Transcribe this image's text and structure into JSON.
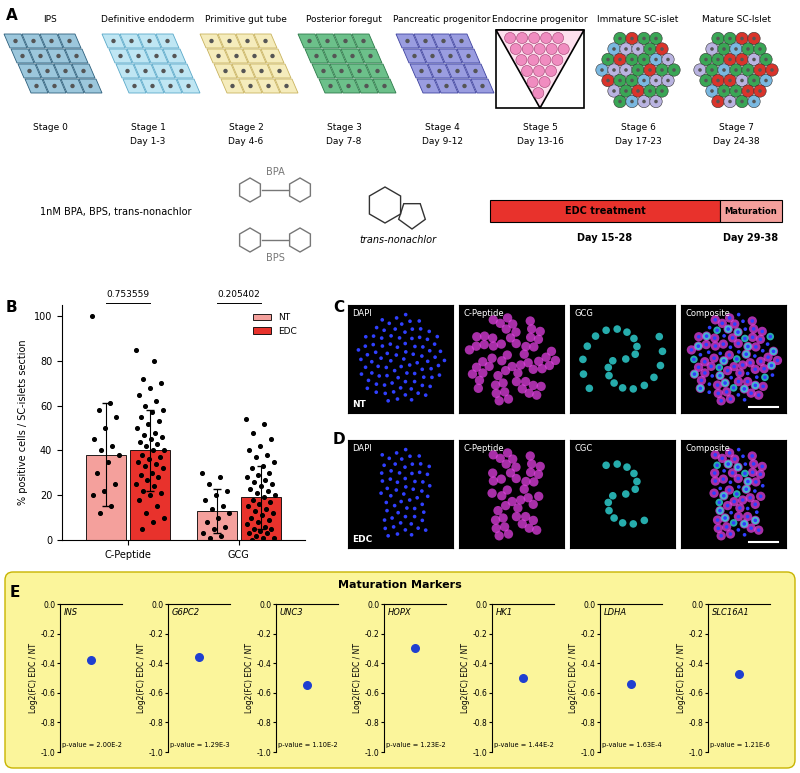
{
  "panel_labels": [
    "A",
    "B",
    "C",
    "D",
    "E"
  ],
  "diagram": {
    "stages": [
      {
        "name": "IPS",
        "stage": "Stage 0"
      },
      {
        "name": "Definitive endoderm",
        "stage": "Stage 1",
        "days": "Day 1-3"
      },
      {
        "name": "Primitive gut tube",
        "stage": "Stage 2",
        "days": "Day 4-6"
      },
      {
        "name": "Posterior foregut",
        "stage": "Stage 3",
        "days": "Day 7-8"
      },
      {
        "name": "Pancreatic progenitor",
        "stage": "Stage 4",
        "days": "Day 9-12"
      },
      {
        "name": "Endocrine progenitor",
        "stage": "Stage 5",
        "days": "Day 13-16"
      },
      {
        "name": "Immature SC-islet",
        "stage": "Stage 6",
        "days": "Day 17-23"
      },
      {
        "name": "Mature SC-Islet",
        "stage": "Stage 7",
        "days": "Day 24-38"
      }
    ],
    "treatment": {
      "exposure": "1nM BPA, BPS, trans-nonachlor",
      "chemicals": [
        "BPA",
        "BPS",
        "trans-nonachlor"
      ],
      "bars": [
        {
          "label": "EDC treatment",
          "days": "Day 15-28",
          "color": "#e8322c"
        },
        {
          "label": "Maturation",
          "days": "Day 29-38",
          "color": "#f4a09c"
        }
      ]
    }
  },
  "chart_data": [
    {
      "type": "bar",
      "y_label": "% positive cells / SC-islets section",
      "categories": [
        "C-Peptide",
        "GCG"
      ],
      "ylim": [
        0,
        105
      ],
      "yticks": [
        0,
        20,
        40,
        60,
        80,
        100
      ],
      "legend": "upper right",
      "series": [
        {
          "name": "NT",
          "color": "#f4a09c",
          "values": [
            38,
            13
          ],
          "error": [
            23,
            10
          ],
          "points": [
            [
              100,
              61,
              58,
              55,
              50,
              45,
              42,
              40,
              38,
              35,
              30,
              25,
              22,
              20,
              15,
              12
            ],
            [
              30,
              28,
              25,
              22,
              20,
              18,
              15,
              14,
              12,
              10,
              8,
              6,
              5,
              3,
              2,
              1
            ]
          ]
        },
        {
          "name": "EDC",
          "color": "#e8322c",
          "values": [
            40,
            19
          ],
          "error": [
            18,
            14
          ],
          "points": [
            [
              85,
              80,
              72,
              70,
              68,
              65,
              62,
              60,
              58,
              57,
              55,
              53,
              52,
              50,
              48,
              47,
              46,
              45,
              44,
              43,
              42,
              40,
              40,
              38,
              37,
              36,
              35,
              34,
              33,
              32,
              30,
              29,
              28,
              27,
              25,
              24,
              22,
              21,
              20,
              18,
              15,
              12,
              10,
              8,
              5
            ],
            [
              54,
              52,
              48,
              45,
              42,
              40,
              38,
              37,
              35,
              33,
              32,
              30,
              29,
              28,
              27,
              26,
              25,
              24,
              23,
              22,
              21,
              20,
              19,
              18,
              17,
              16,
              15,
              14,
              13,
              12,
              11,
              10,
              9,
              8,
              7,
              6,
              5,
              5,
              4,
              3,
              3,
              2,
              1,
              1,
              0
            ]
          ]
        }
      ],
      "annotations": [
        {
          "category": "C-Peptide",
          "text": "0.753559"
        },
        {
          "category": "GCG",
          "text": "0.205402"
        }
      ]
    },
    {
      "type": "scatter",
      "title": "INS",
      "y_label": "Log2(FC) EDC / NT",
      "values": [
        -0.38
      ],
      "color": "#1f3fd0",
      "marker": "o",
      "ylim": [
        -1.0,
        0.0
      ],
      "yticks": [
        -1.0,
        -0.8,
        -0.6,
        -0.4,
        -0.2,
        0.0
      ],
      "tick_labels": "y",
      "annotation": "p-value = 2.00E-2"
    },
    {
      "type": "scatter",
      "title": "G6PC2",
      "y_label": "Log2(FC) EDC / NT",
      "values": [
        -0.36
      ],
      "color": "#1f3fd0",
      "marker": "o",
      "ylim": [
        -1.0,
        0.0
      ],
      "yticks": [
        -1.0,
        -0.8,
        -0.6,
        -0.4,
        -0.2,
        0.0
      ],
      "tick_labels": "y",
      "annotation": "p-value = 1.29E-3"
    },
    {
      "type": "scatter",
      "title": "UNC3",
      "y_label": "Log2(FC) EDC / NT",
      "values": [
        -0.55
      ],
      "color": "#1f3fd0",
      "marker": "o",
      "ylim": [
        -1.0,
        0.0
      ],
      "yticks": [
        -1.0,
        -0.8,
        -0.6,
        -0.4,
        -0.2,
        0.0
      ],
      "tick_labels": "y",
      "annotation": "p-value = 1.10E-2"
    },
    {
      "type": "scatter",
      "title": "HOPX",
      "y_label": "Log2(FC) EDC / NT",
      "values": [
        -0.3
      ],
      "color": "#1f3fd0",
      "marker": "o",
      "ylim": [
        -1.0,
        0.0
      ],
      "yticks": [
        -1.0,
        -0.8,
        -0.6,
        -0.4,
        -0.2,
        0.0
      ],
      "tick_labels": "y",
      "annotation": "p-value = 1.23E-2"
    },
    {
      "type": "scatter",
      "title": "HK1",
      "y_label": "Log2(FC) EDC / NT",
      "values": [
        -0.5
      ],
      "color": "#1f3fd0",
      "marker": "o",
      "ylim": [
        -1.0,
        0.0
      ],
      "yticks": [
        -1.0,
        -0.8,
        -0.6,
        -0.4,
        -0.2,
        0.0
      ],
      "tick_labels": "y",
      "annotation": "p-value = 1.44E-2"
    },
    {
      "type": "scatter",
      "title": "LDHA",
      "y_label": "Log2(FC) EDC / NT",
      "values": [
        -0.54
      ],
      "color": "#1f3fd0",
      "marker": "o",
      "ylim": [
        -1.0,
        0.0
      ],
      "yticks": [
        -1.0,
        -0.8,
        -0.6,
        -0.4,
        -0.2,
        0.0
      ],
      "tick_labels": "y",
      "annotation": "p-value = 1.63E-4"
    },
    {
      "type": "scatter",
      "title": "SLC16A1",
      "y_label": "Log2(FC) EDC / NT",
      "values": [
        -0.47
      ],
      "color": "#1f3fd0",
      "marker": "o",
      "ylim": [
        -1.0,
        0.0
      ],
      "yticks": [
        -1.0,
        -0.8,
        -0.6,
        -0.4,
        -0.2,
        0.0
      ],
      "tick_labels": "y",
      "annotation": "p-value = 1.21E-6"
    }
  ],
  "images": [
    {
      "panel": "C",
      "row_label": "NT",
      "channels": [
        "DAPI",
        "C-Peptide",
        "GCG",
        "Composite"
      ]
    },
    {
      "panel": "D",
      "row_label": "EDC",
      "channels": [
        "DAPI",
        "C-Peptide",
        "CGC",
        "Composite"
      ]
    }
  ],
  "maturation_title": "Maturation Markers"
}
